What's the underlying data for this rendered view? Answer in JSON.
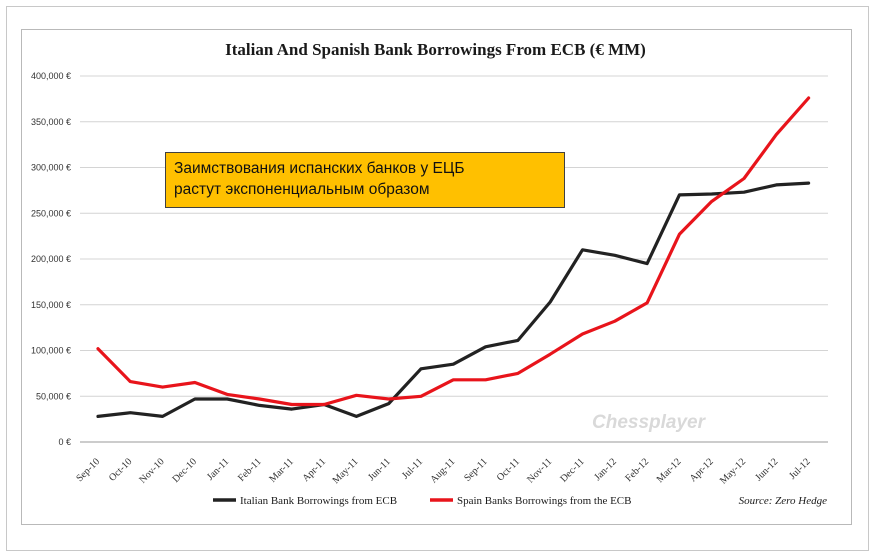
{
  "chart_data": {
    "type": "line",
    "title": "Italian And Spanish Bank Borrowings From ECB (€ MM)",
    "categories": [
      "Sep-10",
      "Oct-10",
      "Nov-10",
      "Dec-10",
      "Jan-11",
      "Feb-11",
      "Mar-11",
      "Apr-11",
      "May-11",
      "Jun-11",
      "Jul-11",
      "Aug-11",
      "Sep-11",
      "Oct-11",
      "Nov-11",
      "Dec-11",
      "Jan-12",
      "Feb-12",
      "Mar-12",
      "Apr-12",
      "May-12",
      "Jun-12",
      "Jul-12"
    ],
    "series": [
      {
        "name": "Italian Bank Borrowings from ECB",
        "color": "#222222",
        "values": [
          28000,
          32000,
          28000,
          47000,
          47000,
          40000,
          36000,
          41000,
          28000,
          42000,
          80000,
          85000,
          104000,
          111000,
          153000,
          210000,
          204000,
          195000,
          270000,
          271000,
          273000,
          281000,
          283000
        ]
      },
      {
        "name": "Spain Banks Borrowings from the ECB",
        "color": "#e8141b",
        "values": [
          102000,
          66000,
          60000,
          65000,
          52000,
          47000,
          41000,
          41000,
          51000,
          47000,
          50000,
          68000,
          68000,
          75000,
          96000,
          118000,
          132000,
          152000,
          227000,
          263000,
          288000,
          336000,
          376000
        ]
      }
    ],
    "yticks": [
      "0 €",
      "50,000 €",
      "100,000 €",
      "150,000 €",
      "200,000 €",
      "250,000 €",
      "300,000 €",
      "350,000 €",
      "400,000 €"
    ],
    "ylim": [
      0,
      400000
    ],
    "grid": true,
    "legend_position": "bottom",
    "source": "Source: Zero Hedge",
    "watermark": "Chessplayer",
    "annotation": {
      "line1": "Заимствования испанских банков у ЕЦБ",
      "line2": "растут экспоненциальным образом"
    }
  }
}
